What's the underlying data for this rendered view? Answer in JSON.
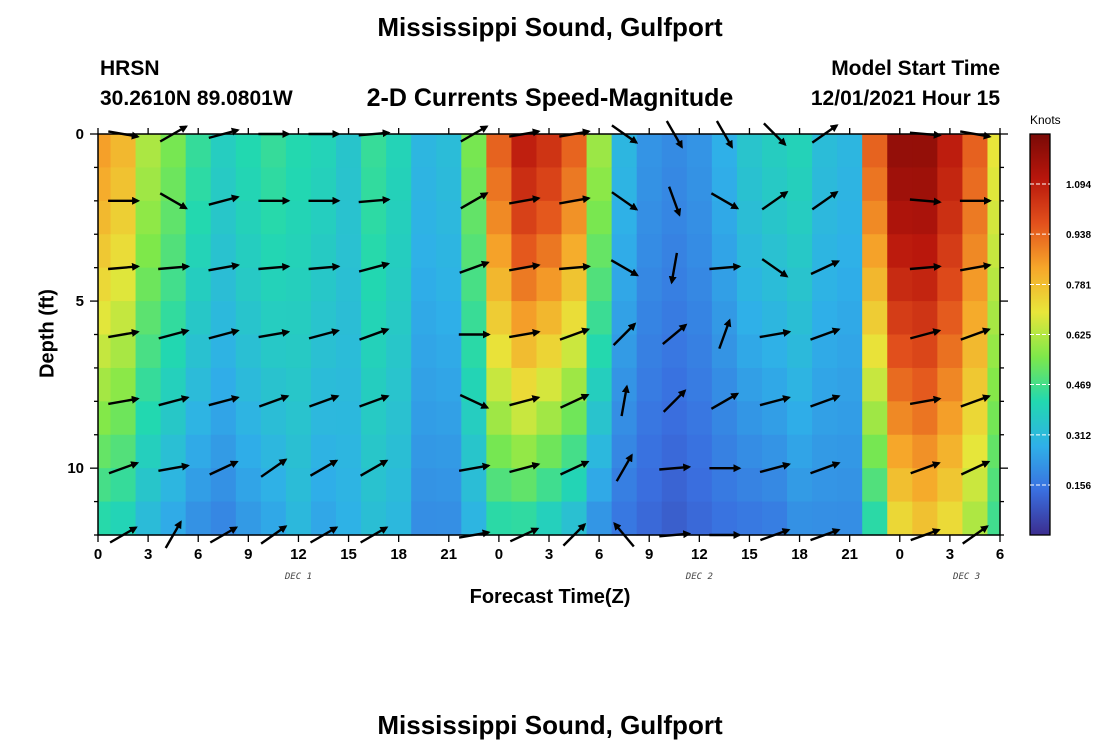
{
  "header": {
    "title": "Mississippi Sound, Gulfport",
    "station": "HRSN",
    "coords": "30.2610N  89.0801W",
    "subtitle": "2-D Currents Speed-Magnitude",
    "model_start_label": "Model Start Time",
    "model_start_value": "12/01/2021 Hour 15"
  },
  "footer": {
    "title_repeat": "Mississippi Sound, Gulfport"
  },
  "chart_data": {
    "type": "heatmap",
    "title": "2-D Currents Speed-Magnitude",
    "xlabel": "Forecast Time(Z)",
    "ylabel": "Depth (ft)",
    "x_tick_labels": [
      "0",
      "3",
      "6",
      "9",
      "12",
      "15",
      "18",
      "21",
      "0",
      "3",
      "6",
      "9",
      "12",
      "15",
      "18",
      "21",
      "0",
      "3",
      "6"
    ],
    "x_range_hours": [
      0,
      54
    ],
    "day_labels": [
      {
        "text": "DEC 1",
        "hour": 12
      },
      {
        "text": "DEC 2",
        "hour": 36
      },
      {
        "text": "DEC 3",
        "hour": 52
      }
    ],
    "y_ticks": [
      0,
      5,
      10
    ],
    "ylim": [
      0,
      12
    ],
    "y_inverted": true,
    "colorbar": {
      "unit": "Knots",
      "min": 0.0,
      "max": 1.25,
      "tick_values": [
        "1.094",
        "0.938",
        "0.781",
        "0.625",
        "0.469",
        "0.312",
        "0.156"
      ],
      "colors": [
        "#3b2d8f",
        "#3a6fe0",
        "#2fb0e8",
        "#22d8b0",
        "#7ee84a",
        "#e8e63a",
        "#f6a62a",
        "#e2501c",
        "#b8160c",
        "#7a0a06"
      ]
    },
    "column_hours": [
      0,
      1.5,
      3,
      4.5,
      6,
      7.5,
      9,
      10.5,
      12,
      13.5,
      15,
      16.5,
      18,
      19.5,
      21,
      22.5,
      24,
      25.5,
      27,
      28.5,
      30,
      31.5,
      33,
      34.5,
      36,
      37.5,
      39,
      40.5,
      42,
      43.5,
      45,
      46.5,
      48,
      49.5,
      51,
      52.5,
      54
    ],
    "speed_profile_surface": [
      0.85,
      0.8,
      0.62,
      0.55,
      0.45,
      0.38,
      0.42,
      0.45,
      0.42,
      0.4,
      0.35,
      0.45,
      0.4,
      0.3,
      0.32,
      0.55,
      0.95,
      1.1,
      1.05,
      0.95,
      0.6,
      0.3,
      0.22,
      0.2,
      0.22,
      0.28,
      0.35,
      0.38,
      0.4,
      0.32,
      0.3,
      0.95,
      1.2,
      1.2,
      1.1,
      0.95,
      0.7
    ],
    "speed_profile_bottom": [
      0.4,
      0.38,
      0.3,
      0.25,
      0.2,
      0.18,
      0.22,
      0.25,
      0.3,
      0.25,
      0.28,
      0.32,
      0.3,
      0.2,
      0.2,
      0.28,
      0.4,
      0.4,
      0.35,
      0.3,
      0.2,
      0.15,
      0.12,
      0.1,
      0.12,
      0.14,
      0.15,
      0.16,
      0.2,
      0.2,
      0.2,
      0.4,
      0.7,
      0.75,
      0.7,
      0.6,
      0.45
    ],
    "vector_hours": [
      1.5,
      4.5,
      7.5,
      10.5,
      13.5,
      16.5,
      22.5,
      25.5,
      28.5,
      31.5,
      34.5,
      37.5,
      40.5,
      43.5,
      49.5,
      52.5
    ],
    "vector_depths": [
      0,
      2,
      4,
      6,
      8,
      10,
      12
    ],
    "vector_directions_deg": [
      [
        10,
        -30,
        -15,
        0,
        0,
        -5,
        -30,
        -10,
        -10,
        35,
        60,
        60,
        45,
        -35,
        5,
        10
      ],
      [
        0,
        30,
        -15,
        0,
        0,
        -5,
        -30,
        -10,
        -10,
        35,
        70,
        30,
        -35,
        -35,
        5,
        0
      ],
      [
        -5,
        -5,
        -10,
        -5,
        -5,
        -15,
        -20,
        -10,
        -5,
        30,
        100,
        -5,
        35,
        -25,
        -5,
        -10
      ],
      [
        -10,
        -15,
        -15,
        -10,
        -15,
        -20,
        0,
        -10,
        -20,
        -45,
        -40,
        -70,
        -10,
        -20,
        -15,
        -20
      ],
      [
        -10,
        -15,
        -15,
        -20,
        -20,
        -20,
        25,
        -15,
        -25,
        -80,
        -45,
        -30,
        -15,
        -20,
        -10,
        -20
      ],
      [
        -20,
        -10,
        -25,
        -35,
        -30,
        -30,
        -10,
        -15,
        -25,
        -60,
        -5,
        0,
        -15,
        -20,
        -20,
        -25
      ],
      [
        -30,
        -60,
        -30,
        -35,
        -30,
        -30,
        -10,
        -25,
        -45,
        -130,
        -5,
        0,
        -20,
        -20,
        -20,
        -35
      ]
    ]
  }
}
